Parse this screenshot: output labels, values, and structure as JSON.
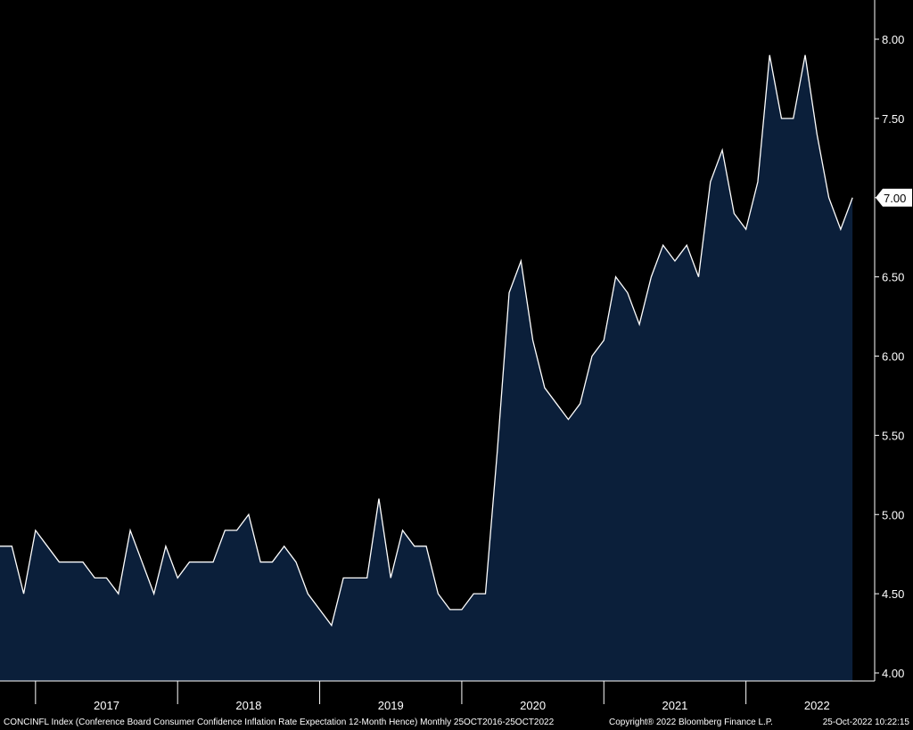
{
  "footer": {
    "source": "CONCINFL Index (Conference Board Consumer Confidence Inflation Rate Expectation 12-Month Hence)  Monthly 25OCT2016-25OCT2022",
    "copyright": "Copyright® 2022 Bloomberg Finance L.P.",
    "timestamp": "25-Oct-2022 10:22:15"
  },
  "chart_data": {
    "type": "area",
    "title": "",
    "xlabel": "",
    "ylabel": "",
    "ylim": [
      4.0,
      8.0
    ],
    "y_ticks": [
      "4.00",
      "4.50",
      "5.00",
      "5.50",
      "6.00",
      "6.50",
      "7.00",
      "7.50",
      "8.00"
    ],
    "x_ticks": [
      "2017",
      "2018",
      "2019",
      "2020",
      "2021",
      "2022"
    ],
    "last_value_label": "7.00",
    "grid": false,
    "colors": {
      "fill": "#0b1f3a",
      "line": "#ffffff",
      "background": "#000000",
      "badge": "#ffffff"
    },
    "series": [
      {
        "x": [
          "2016-10",
          "2016-11",
          "2016-12",
          "2017-01",
          "2017-02",
          "2017-03",
          "2017-04",
          "2017-05",
          "2017-06",
          "2017-07",
          "2017-08",
          "2017-09",
          "2017-10",
          "2017-11",
          "2017-12",
          "2018-01",
          "2018-02",
          "2018-03",
          "2018-04",
          "2018-05",
          "2018-06",
          "2018-07",
          "2018-08",
          "2018-09",
          "2018-10",
          "2018-11",
          "2018-12",
          "2019-01",
          "2019-02",
          "2019-03",
          "2019-04",
          "2019-05",
          "2019-06",
          "2019-07",
          "2019-08",
          "2019-09",
          "2019-10",
          "2019-11",
          "2019-12",
          "2020-01",
          "2020-02",
          "2020-03",
          "2020-04",
          "2020-05",
          "2020-06",
          "2020-07",
          "2020-08",
          "2020-09",
          "2020-10",
          "2020-11",
          "2020-12",
          "2021-01",
          "2021-02",
          "2021-03",
          "2021-04",
          "2021-05",
          "2021-06",
          "2021-07",
          "2021-08",
          "2021-09",
          "2021-10",
          "2021-11",
          "2021-12",
          "2022-01",
          "2022-02",
          "2022-03",
          "2022-04",
          "2022-05",
          "2022-06",
          "2022-07",
          "2022-08",
          "2022-09",
          "2022-10"
        ],
        "values": [
          4.8,
          4.8,
          4.5,
          4.9,
          4.8,
          4.7,
          4.7,
          4.7,
          4.6,
          4.6,
          4.5,
          4.9,
          4.7,
          4.5,
          4.8,
          4.6,
          4.7,
          4.7,
          4.7,
          4.9,
          4.9,
          5.0,
          4.7,
          4.7,
          4.8,
          4.7,
          4.5,
          4.4,
          4.3,
          4.6,
          4.6,
          4.6,
          5.1,
          4.6,
          4.9,
          4.8,
          4.8,
          4.5,
          4.4,
          4.4,
          4.5,
          4.5,
          5.4,
          6.4,
          6.6,
          6.1,
          5.8,
          5.7,
          5.6,
          5.7,
          6.0,
          6.1,
          6.5,
          6.4,
          6.2,
          6.5,
          6.7,
          6.6,
          6.7,
          6.5,
          7.1,
          7.3,
          6.9,
          6.8,
          7.1,
          7.9,
          7.5,
          7.5,
          7.9,
          7.4,
          7.0,
          6.8,
          7.0
        ]
      }
    ]
  }
}
